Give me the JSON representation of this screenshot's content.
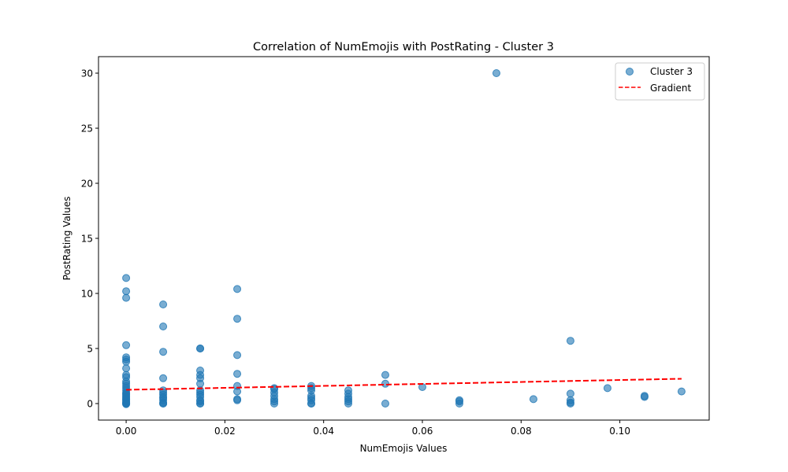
{
  "chart_data": {
    "type": "scatter",
    "title": "Correlation of NumEmojis with PostRating - Cluster 3",
    "xlabel": "NumEmojis Values",
    "ylabel": "PostRating Values",
    "xlim": [
      -0.0056,
      0.1181
    ],
    "ylim": [
      -1.5,
      31.5
    ],
    "x_ticks": [
      0.0,
      0.02,
      0.04,
      0.06,
      0.08,
      0.1
    ],
    "x_tick_labels": [
      "0.00",
      "0.02",
      "0.04",
      "0.06",
      "0.08",
      "0.10"
    ],
    "y_ticks": [
      0,
      5,
      10,
      15,
      20,
      25,
      30
    ],
    "y_tick_labels": [
      "0",
      "5",
      "10",
      "15",
      "20",
      "25",
      "30"
    ],
    "grid": false,
    "legend_position": "top-right",
    "legend": [
      {
        "label": "Cluster 3",
        "kind": "marker",
        "color": "#1f77b4"
      },
      {
        "label": "Gradient",
        "kind": "dashed-line",
        "color": "#ff0000"
      }
    ],
    "series": [
      {
        "name": "Cluster 3",
        "type": "scatter",
        "color": "#1f77b4",
        "x": [
          0,
          0,
          0,
          0,
          0,
          0,
          0,
          0,
          0,
          0,
          0,
          0,
          0,
          0,
          0,
          0,
          0,
          0,
          0,
          0,
          0,
          0,
          0,
          0,
          0,
          0,
          0,
          0,
          0,
          0.0075,
          0.0075,
          0.0075,
          0.0075,
          0.0075,
          0.0075,
          0.0075,
          0.0075,
          0.0075,
          0.0075,
          0.0075,
          0.0075,
          0.0075,
          0.015,
          0.015,
          0.015,
          0.015,
          0.015,
          0.015,
          0.015,
          0.015,
          0.015,
          0.015,
          0.015,
          0.015,
          0.015,
          0.015,
          0.0225,
          0.0225,
          0.0225,
          0.0225,
          0.0225,
          0.0225,
          0.0225,
          0.0225,
          0.03,
          0.03,
          0.03,
          0.03,
          0.03,
          0.03,
          0.03,
          0.0375,
          0.0375,
          0.0375,
          0.0375,
          0.0375,
          0.0375,
          0.0375,
          0.0375,
          0.045,
          0.045,
          0.045,
          0.045,
          0.045,
          0.045,
          0.0525,
          0.0525,
          0.0525,
          0.06,
          0.0675,
          0.0675,
          0.0675,
          0.075,
          0.0825,
          0.09,
          0.09,
          0.09,
          0.09,
          0.09,
          0.0975,
          0.105,
          0.105,
          0.1125
        ],
        "y": [
          11.4,
          10.2,
          9.6,
          5.3,
          4.2,
          4.0,
          3.8,
          3.2,
          2.6,
          2.4,
          2.0,
          1.8,
          1.6,
          1.4,
          1.2,
          1.0,
          0.9,
          0.8,
          0.6,
          0.5,
          0.4,
          0.3,
          0.2,
          0.1,
          0.05,
          0.0,
          0.0,
          -0.05,
          0.7,
          9.0,
          7.0,
          4.7,
          2.3,
          1.2,
          1.0,
          0.8,
          0.6,
          0.5,
          0.3,
          0.1,
          0.0,
          0.0,
          5.0,
          5.0,
          3.0,
          2.6,
          2.3,
          1.8,
          1.2,
          1.0,
          0.8,
          0.6,
          0.3,
          0.2,
          0.0,
          0.0,
          10.4,
          7.7,
          4.4,
          2.7,
          1.6,
          1.1,
          0.4,
          0.3,
          1.4,
          1.3,
          1.0,
          0.7,
          0.4,
          0.2,
          0.0,
          1.6,
          1.4,
          1.2,
          0.7,
          0.5,
          0.3,
          0.0,
          0.0,
          1.2,
          0.9,
          0.6,
          0.4,
          0.2,
          0.0,
          2.6,
          1.8,
          0.0,
          1.5,
          0.3,
          0.2,
          0.0,
          30.0,
          0.4,
          5.7,
          0.9,
          0.3,
          0.1,
          0.0,
          1.4,
          0.7,
          0.6,
          1.1
        ]
      },
      {
        "name": "Gradient",
        "type": "line",
        "style": "dashed",
        "color": "#ff0000",
        "x": [
          0.0,
          0.1125
        ],
        "y": [
          1.25,
          2.25
        ]
      }
    ]
  }
}
